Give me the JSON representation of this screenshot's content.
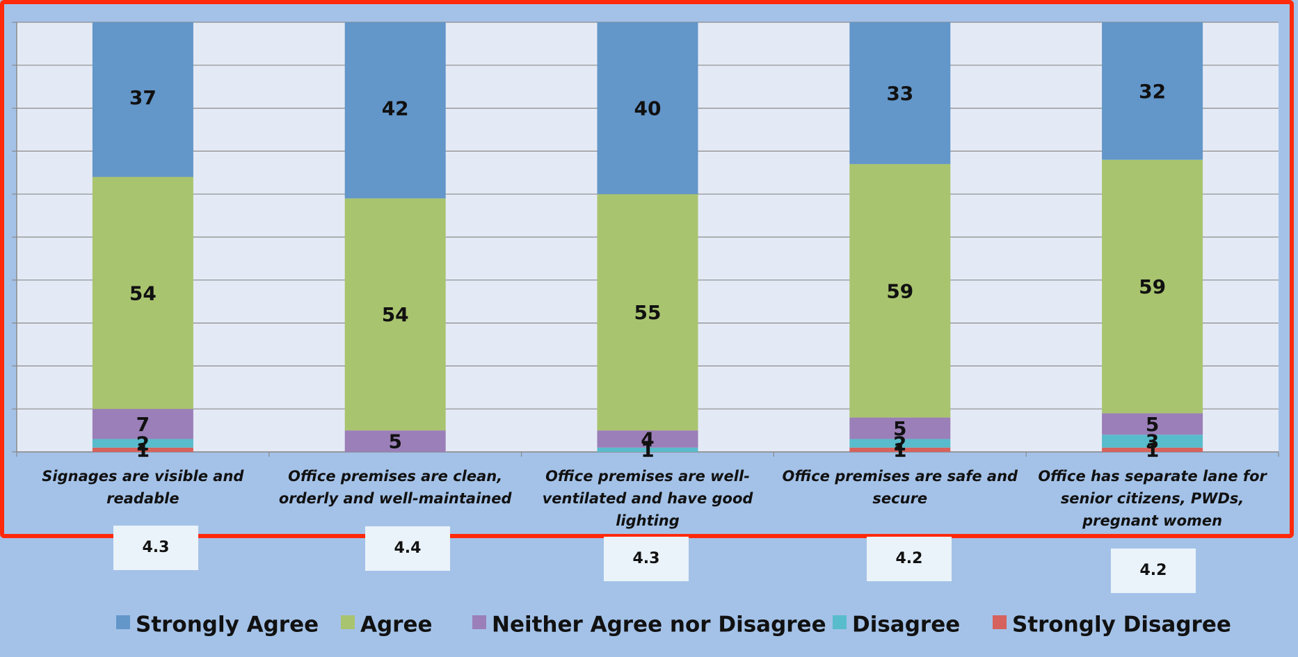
{
  "chart_data": {
    "type": "stacked_bar",
    "categories": [
      "Signages are visible and readable",
      "Office premises are clean, orderly and well-maintained",
      "Office premises are well-ventilated and have good lighting",
      "Office premises are safe and secure",
      "Office has separate lane for senior citizens, PWDs, pregnant women"
    ],
    "series": [
      {
        "name": "Strongly Disagree",
        "color": "#d6625e",
        "values": [
          1,
          0,
          0,
          1,
          1
        ]
      },
      {
        "name": "Disagree",
        "color": "#58bccc",
        "values": [
          2,
          0,
          1,
          2,
          3
        ]
      },
      {
        "name": "Neither Agree nor Disagree",
        "color": "#9b7fb8",
        "values": [
          7,
          5,
          4,
          5,
          5
        ]
      },
      {
        "name": "Agree",
        "color": "#a9c46f",
        "values": [
          54,
          54,
          55,
          59,
          59
        ]
      },
      {
        "name": "Strongly Agree",
        "color": "#6396c9",
        "values": [
          37,
          42,
          40,
          33,
          32
        ]
      }
    ],
    "legend_order": [
      4,
      3,
      2,
      1,
      0
    ],
    "scores": [
      4.3,
      4.4,
      4.3,
      4.2,
      4.2
    ],
    "ylim": [
      0,
      100
    ],
    "yticks": [
      0,
      10,
      20,
      30,
      40,
      50,
      60,
      70,
      80,
      90,
      100
    ],
    "grid": true
  }
}
